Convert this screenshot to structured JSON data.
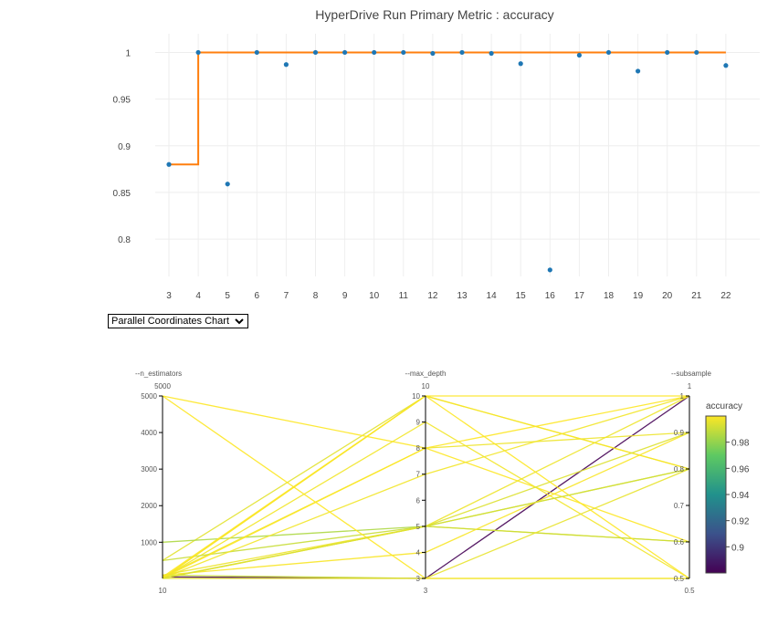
{
  "chart_data": [
    {
      "type": "scatter",
      "title": "HyperDrive Run Primary Metric : accuracy",
      "xlabel": "",
      "ylabel": "",
      "x_ticks": [
        3,
        4,
        5,
        6,
        7,
        8,
        9,
        10,
        11,
        12,
        13,
        14,
        15,
        16,
        17,
        18,
        19,
        20,
        21,
        22
      ],
      "y_ticks": [
        "0.8",
        "0.85",
        "0.9",
        "0.95",
        "1"
      ],
      "ylim": [
        0.76,
        1.02
      ],
      "grid": true,
      "series": [
        {
          "type": "scatter",
          "color": "#1f77b4",
          "x": [
            3,
            4,
            5,
            6,
            7,
            8,
            9,
            10,
            11,
            12,
            13,
            14,
            15,
            16,
            17,
            18,
            19,
            20,
            21,
            22
          ],
          "y": [
            0.88,
            1.0,
            0.859,
            1.0,
            0.987,
            1.0,
            1.0,
            1.0,
            1.0,
            0.999,
            1.0,
            0.999,
            0.988,
            0.767,
            0.997,
            1.0,
            0.98,
            1.0,
            1.0,
            0.986
          ]
        },
        {
          "type": "line-step",
          "color": "#ff7f0e",
          "x": [
            3,
            4,
            4,
            22
          ],
          "y": [
            0.88,
            0.88,
            1.0,
            1.0
          ]
        }
      ]
    },
    {
      "type": "parallel-coordinates",
      "dimensions": [
        {
          "label": "--n_estimators",
          "range": [
            10,
            5000
          ],
          "top_label": "5000",
          "bottom_label": "10",
          "ticks": [
            "1000",
            "2000",
            "3000",
            "4000",
            "5000"
          ],
          "tick_values": [
            1000,
            2000,
            3000,
            4000,
            5000
          ]
        },
        {
          "label": "--max_depth",
          "range": [
            3,
            10
          ],
          "top_label": "10",
          "bottom_label": "3",
          "ticks": [
            "3",
            "4",
            "5",
            "6",
            "7",
            "8",
            "9",
            "10"
          ],
          "tick_values": [
            3,
            4,
            5,
            6,
            7,
            8,
            9,
            10
          ]
        },
        {
          "label": "--subsample",
          "range": [
            0.5,
            1
          ],
          "top_label": "1",
          "bottom_label": "0.5",
          "ticks": [
            "0.5",
            "0.6",
            "0.7",
            "0.8",
            "0.9",
            "1"
          ],
          "tick_values": [
            0.5,
            0.6,
            0.7,
            0.8,
            0.9,
            1
          ]
        }
      ],
      "colorbar": {
        "title": "accuracy",
        "range": [
          0.88,
          1.0
        ],
        "ticks": [
          "0.9",
          "0.92",
          "0.94",
          "0.96",
          "0.98"
        ],
        "tick_values": [
          0.9,
          0.92,
          0.94,
          0.96,
          0.98
        ]
      },
      "lines": [
        {
          "values": [
            50,
            3,
            1.0
          ],
          "accuracy": 0.88
        },
        {
          "values": [
            100,
            3,
            0.5
          ],
          "accuracy": 0.99
        },
        {
          "values": [
            20,
            10,
            1.0
          ],
          "accuracy": 1.0
        },
        {
          "values": [
            500,
            10,
            0.8
          ],
          "accuracy": 0.995
        },
        {
          "values": [
            1000,
            5,
            0.8
          ],
          "accuracy": 0.985
        },
        {
          "values": [
            5000,
            8,
            0.6
          ],
          "accuracy": 1.0
        },
        {
          "values": [
            20,
            9,
            0.5
          ],
          "accuracy": 0.998
        },
        {
          "values": [
            50,
            8,
            0.9
          ],
          "accuracy": 0.997
        },
        {
          "values": [
            10,
            5,
            0.6
          ],
          "accuracy": 0.999
        },
        {
          "values": [
            500,
            5,
            0.6
          ],
          "accuracy": 0.99
        },
        {
          "values": [
            10,
            3,
            0.8
          ],
          "accuracy": 0.996
        },
        {
          "values": [
            20,
            8,
            1.0
          ],
          "accuracy": 1.0
        },
        {
          "values": [
            100,
            4,
            0.9
          ],
          "accuracy": 0.999
        },
        {
          "values": [
            50,
            10,
            0.5
          ],
          "accuracy": 1.0
        },
        {
          "values": [
            10,
            5,
            0.8
          ],
          "accuracy": 0.993
        },
        {
          "values": [
            20,
            7,
            1.0
          ],
          "accuracy": 0.998
        },
        {
          "values": [
            5000,
            3,
            0.5
          ],
          "accuracy": 1.0
        },
        {
          "values": [
            10,
            10,
            0.8
          ],
          "accuracy": 0.999
        },
        {
          "values": [
            100,
            5,
            1.0
          ],
          "accuracy": 0.997
        },
        {
          "values": [
            20,
            5,
            0.9
          ],
          "accuracy": 0.994
        }
      ]
    }
  ],
  "dropdown": {
    "selected": "Parallel Coordinates Chart"
  },
  "colors": {
    "scatter": "#1f77b4",
    "best": "#ff7f0e"
  }
}
